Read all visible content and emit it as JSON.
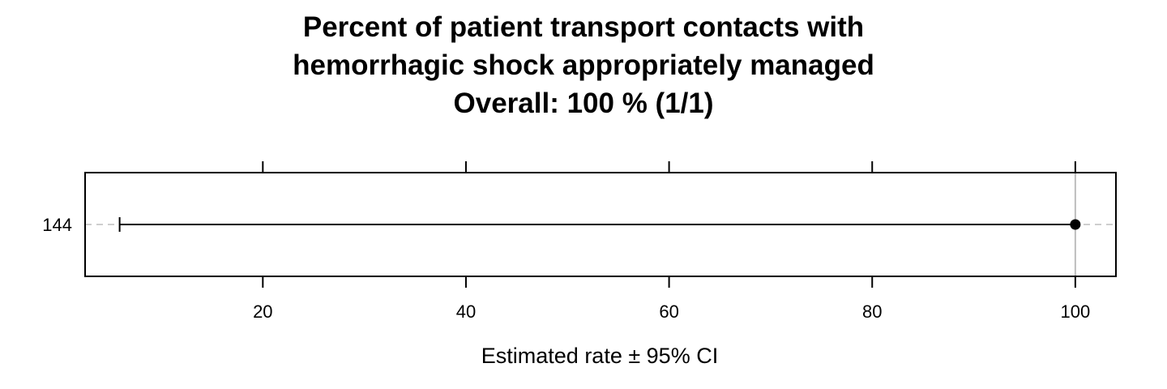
{
  "chart_data": {
    "type": "scatter",
    "title_lines": [
      "Percent of patient transport contacts with",
      "hemorrhagic shock appropriately managed",
      "Overall:  100 %  (1/1)"
    ],
    "xlabel": "Estimated rate ±  95% CI",
    "ylabel": "",
    "xlim": [
      2.5,
      104
    ],
    "x_ticks": [
      20,
      40,
      60,
      80,
      100
    ],
    "x_tick_labels": [
      "20",
      "40",
      "60",
      "80",
      "100"
    ],
    "reference_line_x": 100,
    "grid": false,
    "points": [
      {
        "category": "144",
        "estimate": 100,
        "ci_low": 5.9,
        "ci_high": 100
      }
    ]
  },
  "colors": {
    "point": "#000000",
    "ci_line": "#000000",
    "reference_line": "#bdbdbd",
    "row_guide": "#bdbdbd"
  }
}
